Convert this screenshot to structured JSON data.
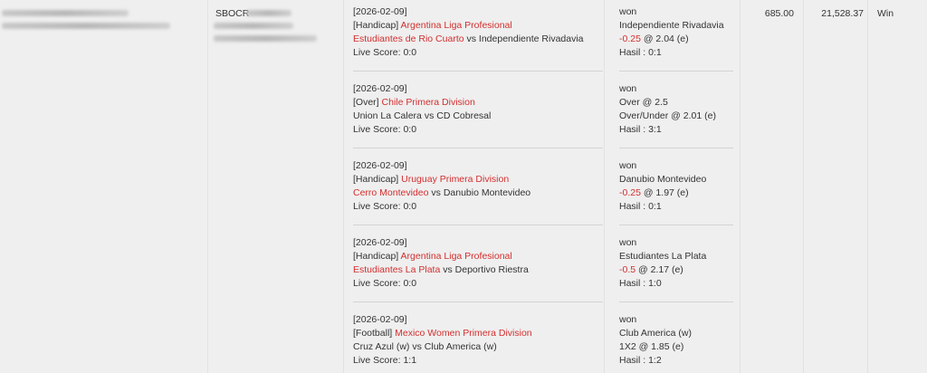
{
  "account_ref_prefix": "SBOCR-",
  "stake": "685.00",
  "payout": "21,528.37",
  "result": "Win",
  "colors": {
    "accent": "#d32f2f",
    "background": "#efefef"
  },
  "bets": [
    {
      "date": "[2026-02-09]",
      "type": "[Handicap]",
      "league": "Argentina Liga Profesional",
      "home": "Estudiantes de Rio Cuarto",
      "vs": "vs",
      "away": "Independiente Rivadavia",
      "highlight": "home",
      "score": "Live Score: 0:0",
      "status": "won",
      "pick": "Independiente Rivadavia",
      "line": "-0.25",
      "odds": "@ 2.04 (e)",
      "hasil": "Hasil : 0:1"
    },
    {
      "date": "[2026-02-09]",
      "type": "[Over]",
      "league": "Chile Primera Division",
      "home": "Union La Calera",
      "vs": "vs",
      "away": "CD Cobresal",
      "highlight": "none",
      "score": "Live Score: 0:0",
      "status": "won",
      "pick": "Over @ 2.5",
      "line": "",
      "odds": "Over/Under @ 2.01 (e)",
      "hasil": "Hasil : 3:1"
    },
    {
      "date": "[2026-02-09]",
      "type": "[Handicap]",
      "league": "Uruguay Primera Division",
      "home": "Cerro Montevideo",
      "vs": "vs",
      "away": "Danubio Montevideo",
      "highlight": "home",
      "score": "Live Score: 0:0",
      "status": "won",
      "pick": "Danubio Montevideo",
      "line": "-0.25",
      "odds": "@ 1.97 (e)",
      "hasil": "Hasil : 0:1"
    },
    {
      "date": "[2026-02-09]",
      "type": "[Handicap]",
      "league": "Argentina Liga Profesional",
      "home": "Estudiantes La Plata",
      "vs": "vs",
      "away": "Deportivo Riestra",
      "highlight": "home",
      "score": "Live Score: 0:0",
      "status": "won",
      "pick": "Estudiantes La Plata",
      "line": "-0.5",
      "odds": "@ 2.17 (e)",
      "hasil": "Hasil : 1:0"
    },
    {
      "date": "[2026-02-09]",
      "type": "[Football]",
      "league": "Mexico Women Primera Division",
      "home": "Cruz Azul (w)",
      "vs": "vs",
      "away": "Club America (w)",
      "highlight": "none",
      "score": "Live Score: 1:1",
      "status": "won",
      "pick": "Club America (w)",
      "line": "",
      "odds": "1X2 @ 1.85 (e)",
      "hasil": "Hasil : 1:2"
    }
  ]
}
